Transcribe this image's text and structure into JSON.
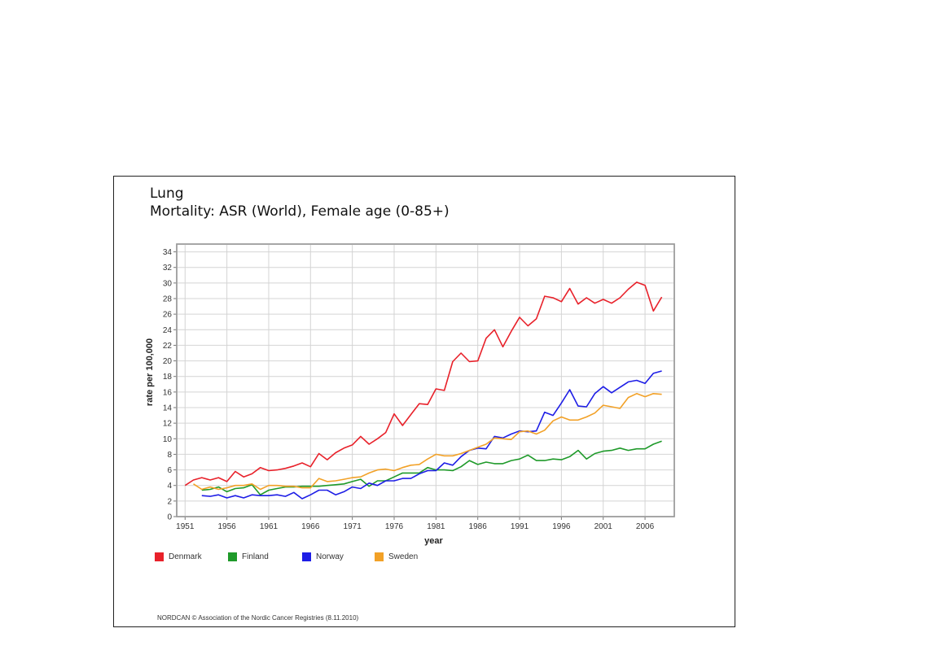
{
  "title": "Lung",
  "subtitle": "Mortality: ASR (World), Female age (0-85+)",
  "footer": "NORDCAN © Association of the Nordic Cancer Registries (8.11.2010)",
  "chart_data": {
    "type": "line",
    "title": "Lung",
    "subtitle": "Mortality: ASR (World), Female age (0-85+)",
    "xlabel": "year",
    "ylabel": "rate per 100,000",
    "xlim": [
      1951,
      2009
    ],
    "ylim": [
      0,
      35
    ],
    "xticks": [
      "1951",
      "1956",
      "1961",
      "1966",
      "1971",
      "1976",
      "1981",
      "1986",
      "1991",
      "1996",
      "2001",
      "2006"
    ],
    "yticks": [
      "0",
      "2",
      "4",
      "6",
      "8",
      "10",
      "12",
      "14",
      "16",
      "18",
      "20",
      "22",
      "24",
      "26",
      "28",
      "30",
      "32",
      "34"
    ],
    "grid": true,
    "legend_position": "bottom",
    "series": [
      {
        "name": "Denmark",
        "color": "#e8212a",
        "x": [
          1951,
          1952,
          1953,
          1954,
          1955,
          1956,
          1957,
          1958,
          1959,
          1960,
          1961,
          1962,
          1963,
          1964,
          1965,
          1966,
          1967,
          1968,
          1969,
          1970,
          1971,
          1972,
          1973,
          1974,
          1975,
          1976,
          1977,
          1978,
          1979,
          1980,
          1981,
          1982,
          1983,
          1984,
          1985,
          1986,
          1987,
          1988,
          1989,
          1990,
          1991,
          1992,
          1993,
          1994,
          1995,
          1996,
          1997,
          1998,
          1999,
          2000,
          2001,
          2002,
          2003,
          2004,
          2005,
          2006,
          2007,
          2008
        ],
        "y": [
          4.0,
          4.7,
          5.0,
          4.7,
          5.0,
          4.5,
          5.8,
          5.1,
          5.5,
          6.3,
          5.9,
          6.0,
          6.2,
          6.5,
          6.9,
          6.4,
          8.1,
          7.3,
          8.2,
          8.8,
          9.2,
          10.3,
          9.3,
          10.0,
          10.8,
          13.2,
          11.7,
          13.1,
          14.5,
          14.4,
          16.4,
          16.2,
          19.9,
          21.0,
          19.9,
          20.0,
          22.9,
          24.0,
          21.8,
          23.8,
          25.6,
          24.5,
          25.4,
          28.3,
          28.1,
          27.6,
          29.3,
          27.3,
          28.1,
          27.4,
          27.9,
          27.4,
          28.1,
          29.2,
          30.1,
          29.7,
          26.4,
          28.2
        ]
      },
      {
        "name": "Finland",
        "color": "#1f9a2a",
        "x": [
          1953,
          1954,
          1955,
          1956,
          1957,
          1958,
          1959,
          1960,
          1961,
          1962,
          1963,
          1964,
          1965,
          1966,
          1967,
          1968,
          1969,
          1970,
          1971,
          1972,
          1973,
          1974,
          1975,
          1976,
          1977,
          1978,
          1979,
          1980,
          1981,
          1982,
          1983,
          1984,
          1985,
          1986,
          1987,
          1988,
          1989,
          1990,
          1991,
          1992,
          1993,
          1994,
          1995,
          1996,
          1997,
          1998,
          1999,
          2000,
          2001,
          2002,
          2003,
          2004,
          2005,
          2006,
          2007,
          2008
        ],
        "y": [
          3.4,
          3.5,
          3.8,
          3.2,
          3.6,
          3.7,
          4.1,
          2.8,
          3.4,
          3.6,
          3.8,
          3.8,
          3.9,
          3.9,
          3.9,
          4.0,
          4.1,
          4.2,
          4.5,
          4.8,
          3.9,
          4.6,
          4.6,
          5.1,
          5.6,
          5.6,
          5.6,
          6.3,
          6.0,
          6.0,
          5.9,
          6.4,
          7.2,
          6.7,
          7.0,
          6.8,
          6.8,
          7.2,
          7.4,
          7.9,
          7.2,
          7.2,
          7.4,
          7.3,
          7.7,
          8.5,
          7.4,
          8.1,
          8.4,
          8.5,
          8.8,
          8.5,
          8.7,
          8.7,
          9.3,
          9.7
        ]
      },
      {
        "name": "Norway",
        "color": "#1e1ee6",
        "x": [
          1953,
          1954,
          1955,
          1956,
          1957,
          1958,
          1959,
          1960,
          1961,
          1962,
          1963,
          1964,
          1965,
          1966,
          1967,
          1968,
          1969,
          1970,
          1971,
          1972,
          1973,
          1974,
          1975,
          1976,
          1977,
          1978,
          1979,
          1980,
          1981,
          1982,
          1983,
          1984,
          1985,
          1986,
          1987,
          1988,
          1989,
          1990,
          1991,
          1992,
          1993,
          1994,
          1995,
          1996,
          1997,
          1998,
          1999,
          2000,
          2001,
          2002,
          2003,
          2004,
          2005,
          2006,
          2007,
          2008
        ],
        "y": [
          2.7,
          2.6,
          2.8,
          2.4,
          2.7,
          2.4,
          2.8,
          2.7,
          2.7,
          2.8,
          2.6,
          3.1,
          2.3,
          2.8,
          3.4,
          3.4,
          2.8,
          3.2,
          3.8,
          3.6,
          4.3,
          4.0,
          4.6,
          4.6,
          4.9,
          4.9,
          5.5,
          5.9,
          5.9,
          6.9,
          6.6,
          7.7,
          8.5,
          8.8,
          8.7,
          10.3,
          10.1,
          10.6,
          11.0,
          10.9,
          11.0,
          13.4,
          13.0,
          14.6,
          16.3,
          14.2,
          14.1,
          15.8,
          16.7,
          15.9,
          16.6,
          17.3,
          17.5,
          17.1,
          18.4,
          18.7
        ]
      },
      {
        "name": "Sweden",
        "color": "#f2a127",
        "x": [
          1952,
          1953,
          1954,
          1955,
          1956,
          1957,
          1958,
          1959,
          1960,
          1961,
          1962,
          1963,
          1964,
          1965,
          1966,
          1967,
          1968,
          1969,
          1970,
          1971,
          1972,
          1973,
          1974,
          1975,
          1976,
          1977,
          1978,
          1979,
          1980,
          1981,
          1982,
          1983,
          1984,
          1985,
          1986,
          1987,
          1988,
          1989,
          1990,
          1991,
          1992,
          1993,
          1994,
          1995,
          1996,
          1997,
          1998,
          1999,
          2000,
          2001,
          2002,
          2003,
          2004,
          2005,
          2006,
          2007,
          2008
        ],
        "y": [
          4.2,
          3.5,
          3.8,
          3.5,
          3.7,
          4.0,
          4.0,
          4.2,
          3.5,
          4.0,
          4.0,
          3.9,
          3.9,
          3.7,
          3.7,
          4.9,
          4.5,
          4.6,
          4.8,
          5.0,
          5.1,
          5.6,
          6.0,
          6.1,
          5.9,
          6.3,
          6.6,
          6.7,
          7.4,
          8.0,
          7.8,
          7.8,
          8.1,
          8.5,
          8.9,
          9.3,
          10.1,
          10.0,
          9.9,
          10.9,
          11.0,
          10.6,
          11.1,
          12.3,
          12.8,
          12.4,
          12.4,
          12.8,
          13.3,
          14.3,
          14.1,
          13.9,
          15.3,
          15.8,
          15.4,
          15.8,
          15.7
        ]
      }
    ]
  }
}
